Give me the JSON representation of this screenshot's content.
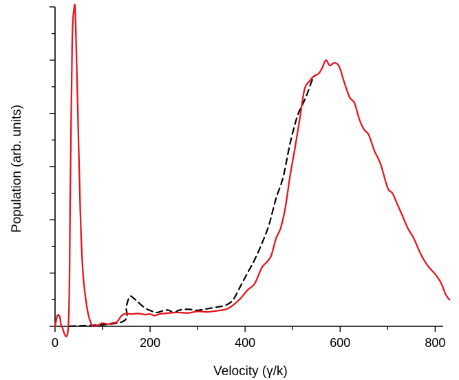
{
  "chart_data": {
    "type": "line",
    "title": "",
    "xlabel": "Velocity (γ/k)",
    "ylabel": "Population (arb. units)",
    "xlim": [
      0,
      840
    ],
    "ylim": [
      0,
      6
    ],
    "x_ticks": [
      0,
      200,
      400,
      600,
      800
    ],
    "y_ticks_labeled": false,
    "grid": false,
    "legend": "none",
    "series": [
      {
        "style": "solid",
        "color": "#e8141c",
        "points": [
          [
            0,
            0
          ],
          [
            5,
            0.2
          ],
          [
            10,
            0.18
          ],
          [
            14,
            0
          ],
          [
            28,
            0
          ],
          [
            32,
            2.5
          ],
          [
            36,
            5.3
          ],
          [
            40,
            5.97
          ],
          [
            43,
            5.8
          ],
          [
            48,
            4.0
          ],
          [
            53,
            2.2
          ],
          [
            58,
            1.1
          ],
          [
            64,
            0.55
          ],
          [
            70,
            0.22
          ],
          [
            76,
            0.05
          ],
          [
            80,
            0
          ],
          [
            90,
            0.02
          ],
          [
            100,
            0.06
          ],
          [
            110,
            0.04
          ],
          [
            120,
            0.06
          ],
          [
            130,
            0.08
          ],
          [
            140,
            0.2
          ],
          [
            150,
            0.24
          ],
          [
            160,
            0.23
          ],
          [
            175,
            0.24
          ],
          [
            190,
            0.22
          ],
          [
            200,
            0.23
          ],
          [
            210,
            0.2
          ],
          [
            220,
            0.23
          ],
          [
            240,
            0.25
          ],
          [
            260,
            0.26
          ],
          [
            280,
            0.25
          ],
          [
            300,
            0.28
          ],
          [
            320,
            0.27
          ],
          [
            340,
            0.29
          ],
          [
            360,
            0.32
          ],
          [
            375,
            0.4
          ],
          [
            390,
            0.52
          ],
          [
            405,
            0.68
          ],
          [
            420,
            0.8
          ],
          [
            435,
            1.1
          ],
          [
            445,
            1.2
          ],
          [
            455,
            1.33
          ],
          [
            465,
            1.65
          ],
          [
            475,
            1.85
          ],
          [
            485,
            2.25
          ],
          [
            495,
            2.85
          ],
          [
            505,
            3.35
          ],
          [
            515,
            3.9
          ],
          [
            525,
            4.45
          ],
          [
            535,
            4.6
          ],
          [
            545,
            4.7
          ],
          [
            555,
            4.75
          ],
          [
            562,
            4.85
          ],
          [
            570,
            5.0
          ],
          [
            578,
            4.9
          ],
          [
            588,
            4.95
          ],
          [
            598,
            4.88
          ],
          [
            608,
            4.6
          ],
          [
            620,
            4.3
          ],
          [
            630,
            4.2
          ],
          [
            640,
            3.9
          ],
          [
            650,
            3.7
          ],
          [
            660,
            3.6
          ],
          [
            672,
            3.3
          ],
          [
            685,
            3.05
          ],
          [
            700,
            2.6
          ],
          [
            710,
            2.5
          ],
          [
            720,
            2.3
          ],
          [
            730,
            2.1
          ],
          [
            742,
            1.85
          ],
          [
            755,
            1.65
          ],
          [
            770,
            1.35
          ],
          [
            785,
            1.13
          ],
          [
            800,
            0.98
          ],
          [
            812,
            0.82
          ],
          [
            822,
            0.6
          ],
          [
            830,
            0.5
          ]
        ]
      },
      {
        "style": "dashed",
        "color": "#000000",
        "points": [
          [
            30,
            0
          ],
          [
            140,
            0.08
          ],
          [
            150,
            0.38
          ],
          [
            157,
            0.56
          ],
          [
            165,
            0.53
          ],
          [
            175,
            0.45
          ],
          [
            190,
            0.34
          ],
          [
            205,
            0.28
          ],
          [
            215,
            0.26
          ],
          [
            230,
            0.3
          ],
          [
            240,
            0.3
          ],
          [
            250,
            0.25
          ],
          [
            260,
            0.3
          ],
          [
            280,
            0.32
          ],
          [
            300,
            0.3
          ],
          [
            320,
            0.33
          ],
          [
            340,
            0.36
          ],
          [
            360,
            0.4
          ],
          [
            375,
            0.5
          ],
          [
            390,
            0.75
          ],
          [
            405,
            1.0
          ],
          [
            420,
            1.25
          ],
          [
            435,
            1.55
          ],
          [
            450,
            1.9
          ],
          [
            465,
            2.4
          ],
          [
            480,
            2.8
          ],
          [
            495,
            3.45
          ],
          [
            510,
            3.95
          ],
          [
            520,
            4.15
          ],
          [
            530,
            4.35
          ],
          [
            540,
            4.6
          ],
          [
            548,
            4.72
          ]
        ]
      }
    ]
  }
}
